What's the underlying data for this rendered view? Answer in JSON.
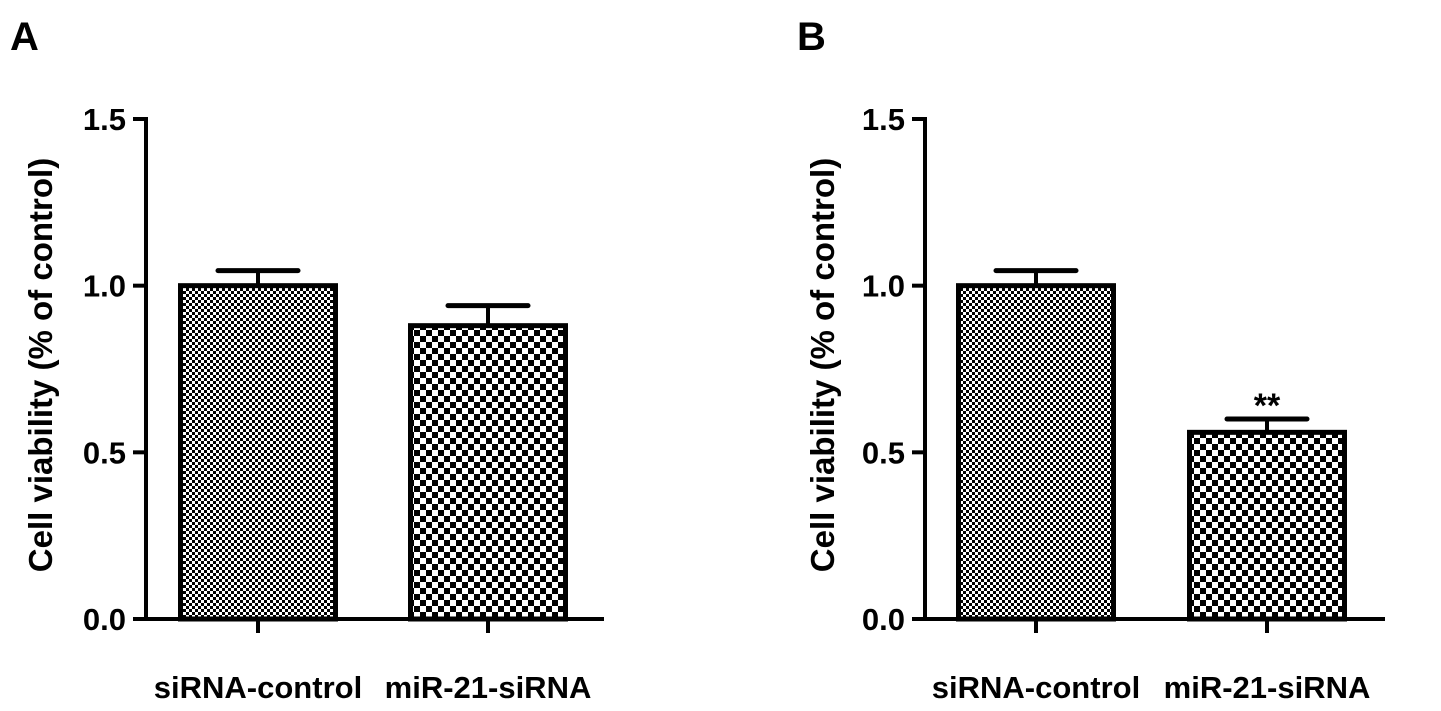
{
  "chart_data": [
    {
      "panel_label": "A",
      "type": "bar",
      "categories": [
        "siRNA-control",
        "miR-21-siRNA"
      ],
      "values": [
        1.0,
        0.88
      ],
      "errors": [
        0.045,
        0.06
      ],
      "patterns": [
        "fine-checker",
        "coarse-checker"
      ],
      "annotations": [
        "",
        ""
      ],
      "ylabel": "Cell viability (% of control)",
      "ylim": [
        0,
        1.5
      ],
      "yticks": [
        0.0,
        0.5,
        1.0,
        1.5
      ],
      "ytick_labels": [
        "0.0",
        "0.5",
        "1.0",
        "1.5"
      ],
      "grid": false
    },
    {
      "panel_label": "B",
      "type": "bar",
      "categories": [
        "siRNA-control",
        "miR-21-siRNA"
      ],
      "values": [
        1.0,
        0.56
      ],
      "errors": [
        0.045,
        0.04
      ],
      "patterns": [
        "fine-checker",
        "coarse-checker"
      ],
      "annotations": [
        "",
        "**"
      ],
      "ylabel": "Cell viability (% of control)",
      "ylim": [
        0,
        1.5
      ],
      "yticks": [
        0.0,
        0.5,
        1.0,
        1.5
      ],
      "ytick_labels": [
        "0.0",
        "0.5",
        "1.0",
        "1.5"
      ],
      "grid": false
    }
  ]
}
